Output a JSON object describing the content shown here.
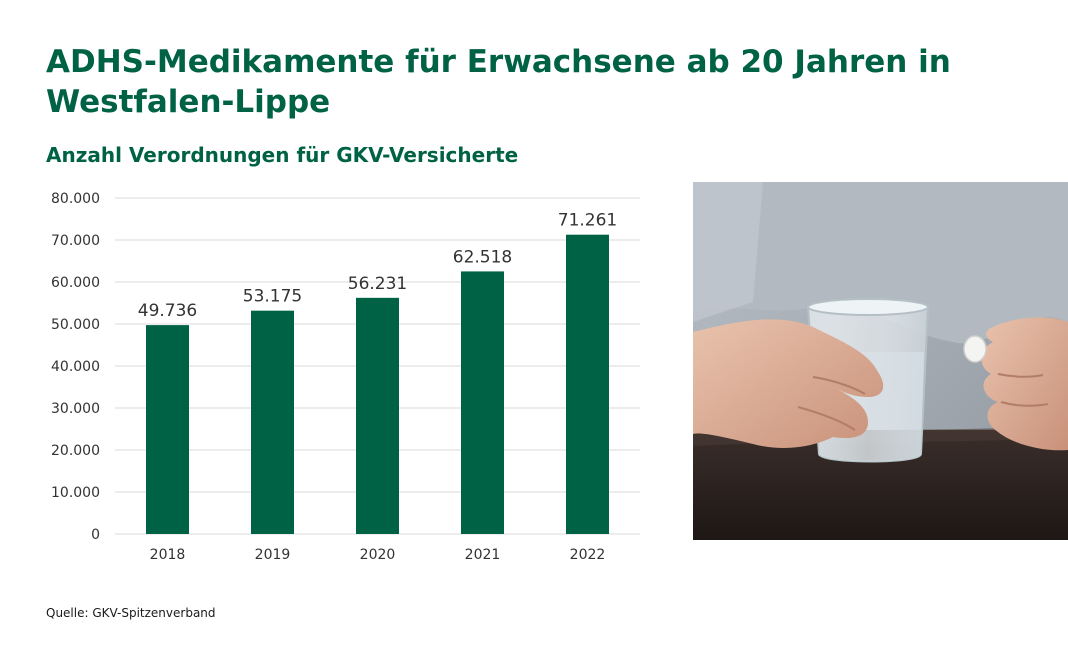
{
  "title": "ADHS-Medikamente für Erwachsene ab 20 Jahren in Westfalen-Lippe",
  "subtitle": "Anzahl Verordnungen für GKV-Versicherte",
  "source": "Quelle: GKV-Spitzenverband",
  "colors": {
    "accent": "#006244",
    "bar": "#006244",
    "grid": "#d9d9d9",
    "text": "#333333"
  },
  "chart_data": {
    "type": "bar",
    "categories": [
      "2018",
      "2019",
      "2020",
      "2021",
      "2022"
    ],
    "values": [
      49736,
      53175,
      56231,
      62518,
      71261
    ],
    "value_labels": [
      "49.736",
      "53.175",
      "56.231",
      "62.518",
      "71.261"
    ],
    "ylim": [
      0,
      80000
    ],
    "yticks": [
      0,
      10000,
      20000,
      30000,
      40000,
      50000,
      60000,
      70000,
      80000
    ],
    "ytick_labels": [
      "0",
      "10.000",
      "20.000",
      "30.000",
      "40.000",
      "50.000",
      "60.000",
      "70.000",
      "80.000"
    ],
    "grid": true,
    "xlabel": "",
    "ylabel": ""
  },
  "photo": {
    "icon": "hand-holding-pill-and-water-glass"
  }
}
